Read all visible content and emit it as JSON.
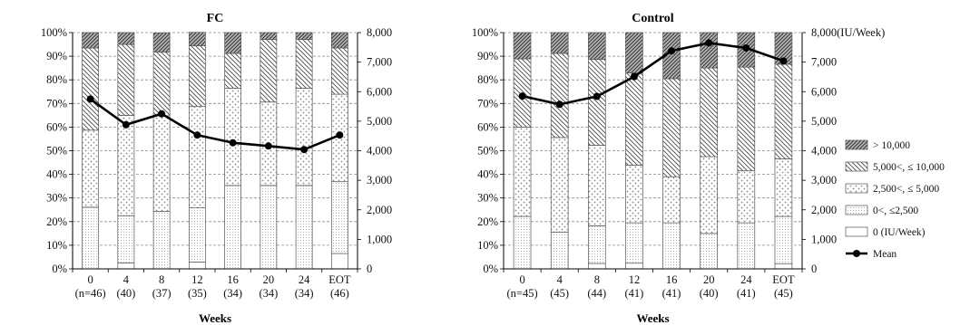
{
  "colors": {
    "mean_line": "#000000",
    "grid": "#8c8c8c",
    "bar_outline": "#555555"
  },
  "legend": {
    "entries": [
      {
        "label": "> 10,000",
        "pattern": "dense"
      },
      {
        "label": "5,000<, ≤ 10,000",
        "pattern": "hatch"
      },
      {
        "label": "2,500<, ≤ 5,000",
        "pattern": "dots"
      },
      {
        "label": "0<, ≤2,500",
        "pattern": "fine"
      },
      {
        "label": "0 (IU/Week)",
        "pattern": "white"
      }
    ],
    "mean_label": "Mean",
    "placement": "right"
  },
  "chart_data": [
    {
      "type": "bar",
      "stacked": true,
      "title": "FC",
      "xlabel": "Weeks",
      "ylabel": "",
      "y2label": "",
      "ylim": [
        0,
        100
      ],
      "y2lim": [
        0,
        8000
      ],
      "yticks": [
        "0%",
        "10%",
        "20%",
        "30%",
        "40%",
        "50%",
        "60%",
        "70%",
        "80%",
        "90%",
        "100%"
      ],
      "y2ticks": [
        "0",
        "1,000",
        "2,000",
        "3,000",
        "4,000",
        "5,000",
        "6,000",
        "7,000",
        "8,000"
      ],
      "grid": true,
      "categories": [
        {
          "week": "0",
          "n": "(n=46)"
        },
        {
          "week": "4",
          "n": "(40)"
        },
        {
          "week": "8",
          "n": "(37)"
        },
        {
          "week": "12",
          "n": "(35)"
        },
        {
          "week": "16",
          "n": "(34)"
        },
        {
          "week": "20",
          "n": "(34)"
        },
        {
          "week": "24",
          "n": "(34)"
        },
        {
          "week": "EOT",
          "n": "(46)"
        }
      ],
      "series": [
        {
          "key": "zero",
          "values": [
            0,
            2.5,
            0,
            2.9,
            0,
            0,
            0,
            6.5
          ]
        },
        {
          "key": "le2500",
          "values": [
            26.1,
            20.0,
            24.3,
            22.9,
            35.3,
            35.3,
            35.3,
            30.4
          ]
        },
        {
          "key": "le5000",
          "values": [
            32.6,
            42.5,
            40.5,
            42.9,
            41.2,
            35.3,
            41.2,
            37.0
          ]
        },
        {
          "key": "le10000",
          "values": [
            34.8,
            30.0,
            27.0,
            25.7,
            14.7,
            26.5,
            20.6,
            19.6
          ]
        },
        {
          "key": "gt10000",
          "values": [
            6.5,
            5.0,
            8.1,
            5.7,
            8.8,
            2.9,
            2.9,
            6.5
          ]
        }
      ],
      "mean": {
        "name": "Mean",
        "values": [
          5750,
          4880,
          5250,
          4530,
          4270,
          4160,
          4040,
          4530
        ]
      }
    },
    {
      "type": "bar",
      "stacked": true,
      "title": "Control",
      "xlabel": "Weeks",
      "ylabel": "",
      "y2label": "",
      "ylim": [
        0,
        100
      ],
      "y2lim": [
        0,
        8000
      ],
      "yticks": [
        "0%",
        "10%",
        "20%",
        "30%",
        "40%",
        "50%",
        "60%",
        "70%",
        "80%",
        "90%",
        "100%"
      ],
      "y2ticks": [
        "0",
        "1,000",
        "2,000",
        "3,000",
        "4,000",
        "5,000",
        "6,000",
        "7,000",
        "8,000(IU/Week)"
      ],
      "grid": true,
      "categories": [
        {
          "week": "0",
          "n": "(n=45)"
        },
        {
          "week": "4",
          "n": "(45)"
        },
        {
          "week": "8",
          "n": "(44)"
        },
        {
          "week": "12",
          "n": "(41)"
        },
        {
          "week": "16",
          "n": "(41)"
        },
        {
          "week": "20",
          "n": "(40)"
        },
        {
          "week": "24",
          "n": "(41)"
        },
        {
          "week": "EOT",
          "n": "(45)"
        }
      ],
      "series": [
        {
          "key": "zero",
          "values": [
            0,
            0,
            2.3,
            2.4,
            0,
            0,
            0,
            2.2
          ]
        },
        {
          "key": "le2500",
          "values": [
            22.2,
            15.6,
            15.9,
            17.1,
            19.5,
            15.0,
            19.5,
            20.0
          ]
        },
        {
          "key": "le5000",
          "values": [
            37.8,
            40.0,
            34.1,
            24.4,
            19.5,
            32.5,
            22.0,
            24.4
          ]
        },
        {
          "key": "le10000",
          "values": [
            28.9,
            35.6,
            36.4,
            39.0,
            41.5,
            37.5,
            43.9,
            40.0
          ]
        },
        {
          "key": "gt10000",
          "values": [
            11.1,
            8.8,
            11.3,
            17.1,
            19.5,
            15.0,
            14.6,
            13.4
          ]
        }
      ],
      "mean": {
        "name": "Mean",
        "values": [
          5850,
          5570,
          5840,
          6510,
          7380,
          7650,
          7480,
          7040
        ]
      }
    }
  ]
}
